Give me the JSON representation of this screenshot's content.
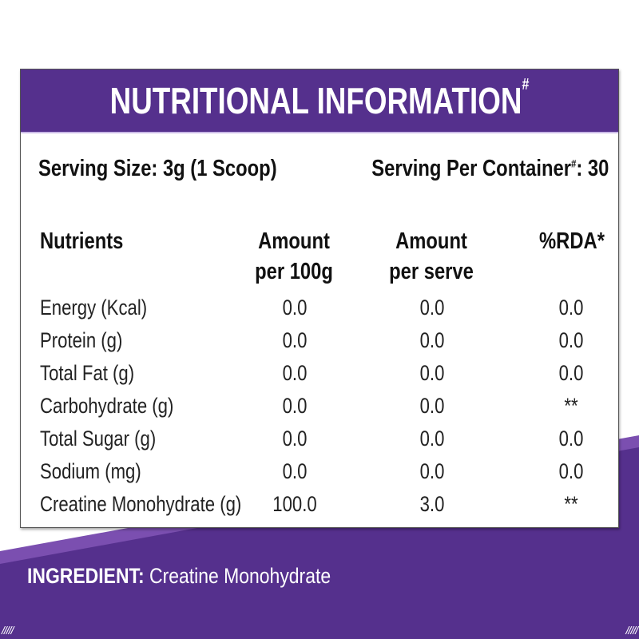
{
  "colors": {
    "purple": "#55308d",
    "light_purple": "#7b4fb0"
  },
  "title": "NUTRITIONAL INFORMATION",
  "title_mark": "#",
  "serving_size": "Serving Size: 3g (1 Scoop)",
  "serving_per_container_label": "Serving Per Container",
  "serving_per_container_mark": "#",
  "serving_per_container_value": ": 30",
  "table": {
    "headers": [
      "Nutrients",
      "Amount per 100g",
      "Amount per serve",
      "%RDA*"
    ],
    "rows": [
      [
        "Energy (Kcal)",
        "0.0",
        "0.0",
        "0.0"
      ],
      [
        "Protein (g)",
        "0.0",
        "0.0",
        "0.0"
      ],
      [
        "Total Fat (g)",
        "0.0",
        "0.0",
        "0.0"
      ],
      [
        "Carbohydrate (g)",
        "0.0",
        "0.0",
        "**"
      ],
      [
        "Total Sugar (g)",
        "0.0",
        "0.0",
        "0.0"
      ],
      [
        "Sodium (mg)",
        "0.0",
        "0.0",
        "0.0"
      ],
      [
        "Creatine Monohydrate (g)",
        "100.0",
        "3.0",
        "**"
      ]
    ]
  },
  "ingredient_label": "INGREDIENT:",
  "ingredient_value": "Creatine Monohydrate",
  "decor": "/////"
}
